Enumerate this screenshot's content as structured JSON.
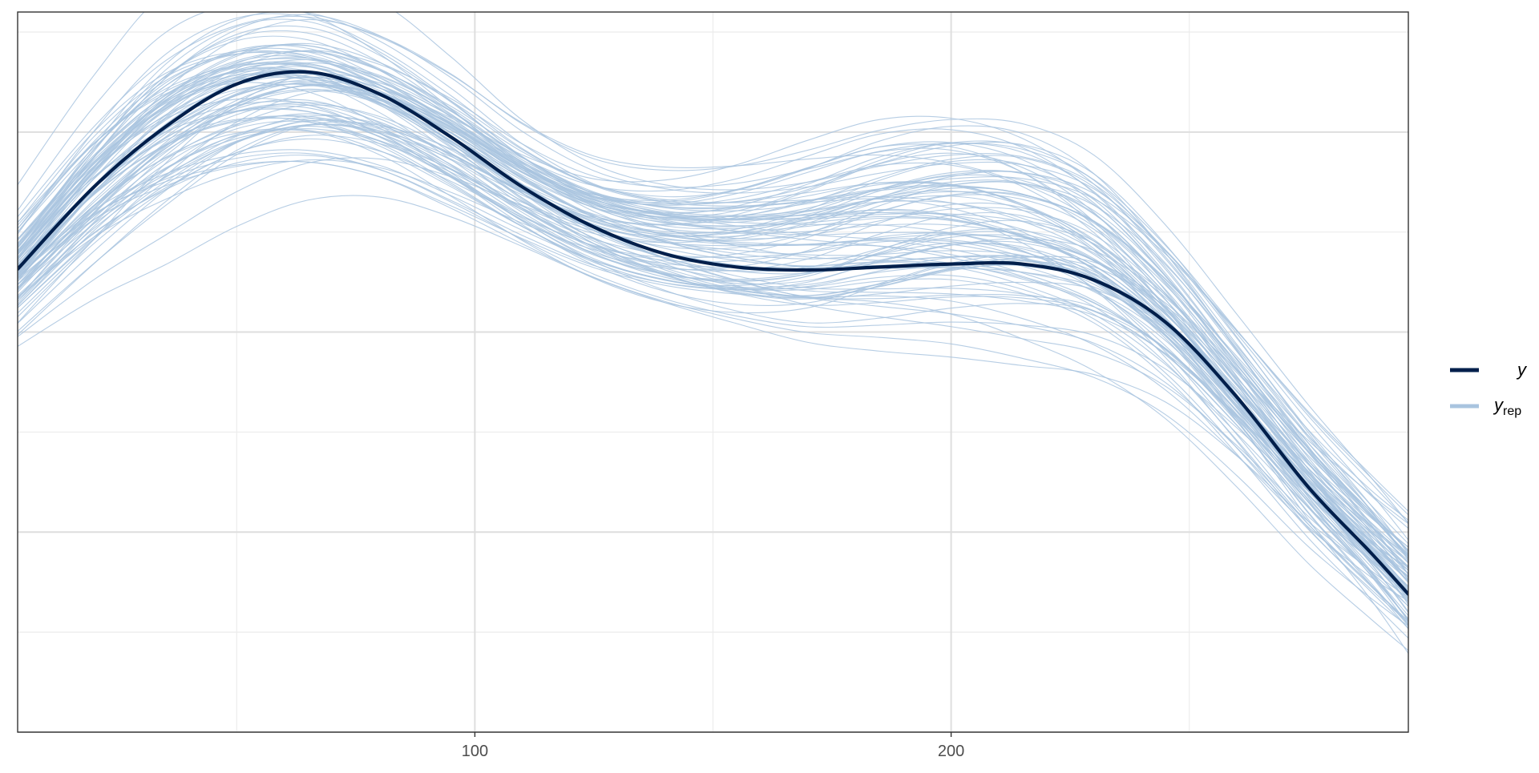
{
  "chart_data": {
    "type": "line",
    "title": "",
    "xlabel": "",
    "ylabel": "",
    "xlim": [
      4,
      296
    ],
    "ylim": [
      0.0,
      0.0072
    ],
    "x_ticks": [
      100,
      200
    ],
    "x_tick_labels": [
      "100",
      "200"
    ],
    "x_minor_ticks": [
      50,
      150,
      250
    ],
    "y_gridlines": [
      0.0,
      0.001,
      0.002,
      0.003,
      0.004,
      0.005,
      0.006,
      0.007
    ],
    "y_tick_labels_shown": false,
    "grid": true,
    "legend_position": "right",
    "legend": {
      "y_label": "y",
      "yrep_main": "y",
      "yrep_sub": "rep"
    },
    "series": [
      {
        "name": "y",
        "color": "#011f4b",
        "role": "observed",
        "points": [
          [
            4,
            0.00463
          ],
          [
            20,
            0.00545
          ],
          [
            35,
            0.00605
          ],
          [
            50,
            0.00648
          ],
          [
            65,
            0.0066
          ],
          [
            80,
            0.00638
          ],
          [
            95,
            0.00595
          ],
          [
            110,
            0.00545
          ],
          [
            125,
            0.00505
          ],
          [
            140,
            0.00478
          ],
          [
            155,
            0.00465
          ],
          [
            170,
            0.00462
          ],
          [
            185,
            0.00465
          ],
          [
            200,
            0.00468
          ],
          [
            215,
            0.00468
          ],
          [
            230,
            0.00452
          ],
          [
            245,
            0.0041
          ],
          [
            260,
            0.00335
          ],
          [
            275,
            0.00245
          ],
          [
            288,
            0.0018
          ],
          [
            296,
            0.00138
          ]
        ]
      }
    ],
    "replicates": {
      "name": "yrep",
      "color": "#a9c4df",
      "count": 100,
      "x_grid": [
        4,
        20,
        35,
        50,
        65,
        80,
        95,
        110,
        125,
        140,
        155,
        170,
        185,
        200,
        215,
        230,
        245,
        260,
        275,
        288,
        296
      ],
      "mean_curve": [
        0.00463,
        0.00545,
        0.00605,
        0.0064,
        0.00648,
        0.00628,
        0.0059,
        0.00545,
        0.0051,
        0.00492,
        0.00487,
        0.00492,
        0.00505,
        0.00512,
        0.00505,
        0.00478,
        0.0042,
        0.0034,
        0.00255,
        0.0019,
        0.0015
      ],
      "spread_curve": [
        0.0004,
        0.00052,
        0.0006,
        0.00058,
        0.00052,
        0.00045,
        0.0004,
        0.00035,
        0.00035,
        0.0004,
        0.00048,
        0.00058,
        0.00065,
        0.00068,
        0.00068,
        0.00062,
        0.00052,
        0.00045,
        0.00042,
        0.0004,
        0.0004
      ]
    }
  },
  "colors": {
    "panel_border": "#333333",
    "grid_major": "#dedede",
    "grid_minor": "#ececec",
    "tick_label": "#4d4d4d",
    "background": "#ffffff"
  }
}
